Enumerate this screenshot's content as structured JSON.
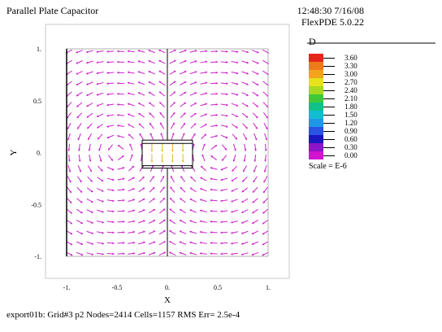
{
  "header": {
    "title": "Parallel Plate Capacitor",
    "timestamp": "12:48:30 7/16/08",
    "software": "FlexPDE 5.0.22"
  },
  "footer": {
    "status": "export01b:  Grid#3  p2  Nodes=2414 Cells=1157 RMS Err= 2.5e-4"
  },
  "legend": {
    "title": "D",
    "scale_note": "Scale = E-6",
    "levels": [
      {
        "value": "3.60",
        "color": "#e4261b"
      },
      {
        "value": "3.30",
        "color": "#ee7a1a"
      },
      {
        "value": "3.00",
        "color": "#f3a31c"
      },
      {
        "value": "2.70",
        "color": "#e6e21c"
      },
      {
        "value": "2.40",
        "color": "#a6d91f"
      },
      {
        "value": "2.10",
        "color": "#3fc93a"
      },
      {
        "value": "1.80",
        "color": "#10c28a"
      },
      {
        "value": "1.50",
        "color": "#12bdd0"
      },
      {
        "value": "1.20",
        "color": "#1f96e8"
      },
      {
        "value": "0.90",
        "color": "#2a52e3"
      },
      {
        "value": "0.60",
        "color": "#1a16c0"
      },
      {
        "value": "0.30",
        "color": "#8c14c9"
      },
      {
        "value": "0.00",
        "color": "#d214cf"
      }
    ]
  },
  "chart_data": {
    "type": "vector-field",
    "title": "Parallel Plate Capacitor",
    "xlabel": "X",
    "ylabel": "Y",
    "xlim": [
      -1,
      1
    ],
    "ylim": [
      -1,
      1
    ],
    "x_ticks": [
      "-1.",
      "-0.5",
      "0.",
      "0.5",
      "1."
    ],
    "y_ticks": [
      "1.",
      "0.5",
      "0.",
      "-0.5",
      "-1."
    ],
    "x_tick_values": [
      -1,
      -0.5,
      0,
      0.5,
      1
    ],
    "y_tick_values": [
      1,
      0.5,
      0,
      -0.5,
      -1
    ],
    "field_color": "#cc22cc",
    "strong_field_color": "#e6b81c",
    "plate_region": {
      "x": [
        -0.25,
        0.25
      ],
      "y": [
        -0.15,
        0.12
      ]
    },
    "outer_boundary": {
      "x": [
        -1,
        1
      ],
      "y": [
        -1,
        1
      ]
    },
    "center_line_x": 0
  }
}
